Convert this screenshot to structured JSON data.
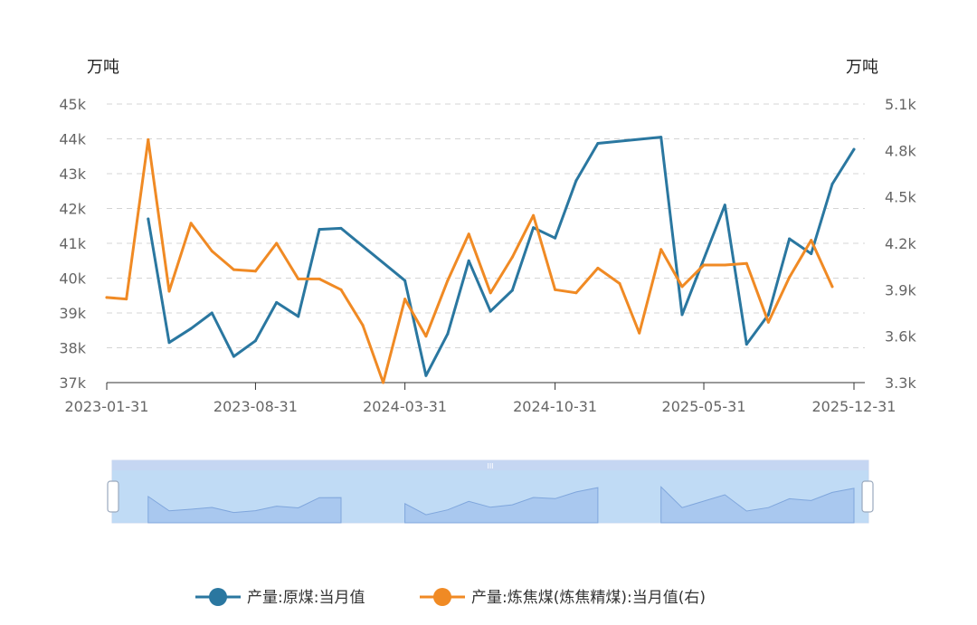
{
  "chart_data": {
    "type": "line",
    "y_left_unit": "万吨",
    "y_right_unit": "万吨",
    "y_left_ticks": [
      "37k",
      "38k",
      "39k",
      "40k",
      "41k",
      "42k",
      "43k",
      "44k",
      "45k"
    ],
    "y_left_lim": [
      37000,
      45000
    ],
    "y_right_ticks": [
      "3.3k",
      "3.6k",
      "3.9k",
      "4.2k",
      "4.5k",
      "4.8k",
      "5.1k"
    ],
    "y_right_lim": [
      3300,
      5100
    ],
    "x_tick_labels": [
      "2023-01-31",
      "2023-08-31",
      "2024-03-31",
      "2024-10-31",
      "2025-05-31",
      "2025-12-31"
    ],
    "x_range": [
      "2023-01-31",
      "2025-12-31"
    ],
    "grid": true,
    "legend_position": "bottom",
    "series": [
      {
        "name": "产量:原煤:当月值",
        "axis": "left",
        "color": "#2a77a0",
        "points": [
          [
            "2023-03-31",
            41700
          ],
          [
            "2023-04-30",
            38150
          ],
          [
            "2023-05-31",
            38550
          ],
          [
            "2023-06-30",
            39000
          ],
          [
            "2023-07-31",
            37750
          ],
          [
            "2023-08-31",
            38200
          ],
          [
            "2023-09-30",
            39300
          ],
          [
            "2023-10-31",
            38900
          ],
          [
            "2023-11-30",
            41400
          ],
          [
            "2023-12-31",
            41430
          ],
          [
            "2024-03-31",
            39930
          ],
          [
            "2024-04-30",
            37200
          ],
          [
            "2024-05-31",
            38400
          ],
          [
            "2024-06-30",
            40500
          ],
          [
            "2024-07-31",
            39050
          ],
          [
            "2024-08-31",
            39650
          ],
          [
            "2024-09-30",
            41450
          ],
          [
            "2024-10-31",
            41150
          ],
          [
            "2024-11-30",
            42800
          ],
          [
            "2024-12-31",
            43870
          ],
          [
            "2025-03-31",
            44050
          ],
          [
            "2025-04-30",
            38950
          ],
          [
            "2025-06-30",
            42100
          ],
          [
            "2025-07-31",
            38100
          ],
          [
            "2025-08-31",
            38950
          ],
          [
            "2025-09-30",
            41130
          ],
          [
            "2025-10-31",
            40700
          ],
          [
            "2025-11-30",
            42700
          ],
          [
            "2025-12-31",
            43700
          ]
        ]
      },
      {
        "name": "产量:炼焦煤(炼焦精煤):当月值(右)",
        "axis": "right",
        "color": "#f08a24",
        "points": [
          [
            "2023-01-31",
            3850
          ],
          [
            "2023-02-28",
            3840
          ],
          [
            "2023-03-31",
            4870
          ],
          [
            "2023-04-30",
            3890
          ],
          [
            "2023-05-31",
            4330
          ],
          [
            "2023-06-30",
            4150
          ],
          [
            "2023-07-31",
            4030
          ],
          [
            "2023-08-31",
            4020
          ],
          [
            "2023-09-30",
            4200
          ],
          [
            "2023-10-31",
            3970
          ],
          [
            "2023-11-30",
            3970
          ],
          [
            "2023-12-31",
            3900
          ],
          [
            "2024-01-31",
            3670
          ],
          [
            "2024-02-29",
            3300
          ],
          [
            "2024-03-31",
            3840
          ],
          [
            "2024-04-30",
            3600
          ],
          [
            "2024-05-31",
            3960
          ],
          [
            "2024-06-30",
            4260
          ],
          [
            "2024-07-31",
            3880
          ],
          [
            "2024-08-31",
            4110
          ],
          [
            "2024-09-30",
            4380
          ],
          [
            "2024-10-31",
            3900
          ],
          [
            "2024-11-30",
            3880
          ],
          [
            "2024-12-31",
            4040
          ],
          [
            "2025-01-31",
            3940
          ],
          [
            "2025-02-28",
            3620
          ],
          [
            "2025-03-31",
            4160
          ],
          [
            "2025-04-30",
            3920
          ],
          [
            "2025-05-31",
            4060
          ],
          [
            "2025-06-30",
            4060
          ],
          [
            "2025-07-31",
            4070
          ],
          [
            "2025-08-31",
            3690
          ],
          [
            "2025-09-30",
            3980
          ],
          [
            "2025-10-31",
            4220
          ],
          [
            "2025-11-30",
            3920
          ]
        ]
      }
    ]
  },
  "navigator": {
    "handle_grip": "III"
  },
  "legend": [
    {
      "label": "产量:原煤:当月值",
      "color": "#2a77a0"
    },
    {
      "label": "产量:炼焦煤(炼焦精煤):当月值(右)",
      "color": "#f08a24"
    }
  ]
}
